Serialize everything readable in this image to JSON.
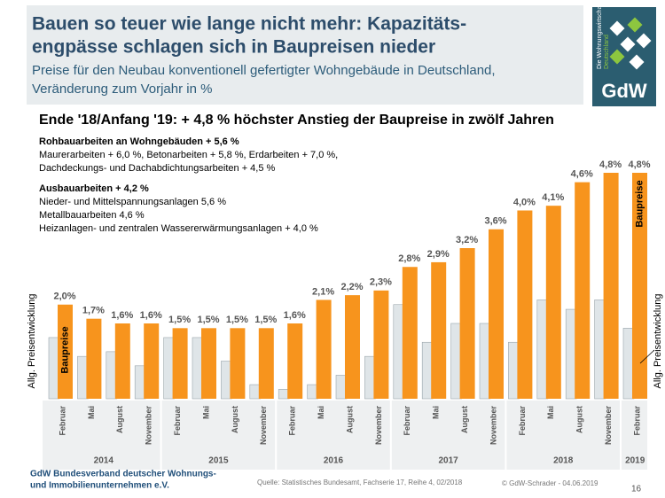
{
  "header": {
    "title_lines": [
      "Bauen so teuer wie lange nicht mehr: Kapazitäts-",
      "engpässe schlagen sich in Baupreisen nieder"
    ],
    "subtitle_lines": [
      "Preise für den Neubau konventionell gefertigter Wohngebäude in Deutschland,",
      "Veränderung zum Vorjahr in %"
    ]
  },
  "logo": {
    "tagline_lines": [
      "Die Wohnungswirtschaft",
      "Deutschland"
    ],
    "name": "GdW"
  },
  "headline": "Ende '18/Anfang '19: + 4,8 % höchster Anstieg der Baupreise in zwölf Jahren",
  "notes": [
    {
      "heading": "Rohbauarbeiten an Wohngebäuden + 5,6 %",
      "lines": [
        "Maurerarbeiten + 6,0 %, Betonarbeiten + 5,8 %, Erdarbeiten + 7,0 %,",
        "Dachdeckungs- und Dachabdichtungsarbeiten + 4,5 %"
      ]
    },
    {
      "heading": "Ausbauarbeiten + 4,2 %",
      "lines": [
        "Nieder- und Mittelspannungsanlagen 5,6 %",
        "Metallbauarbeiten 4,6 %",
        "Heizanlagen- und zentralen Wassererwärmungsanlagen + 4,0 %"
      ]
    }
  ],
  "chart_data": {
    "type": "bar",
    "year_groups": [
      {
        "year": "2014",
        "months": [
          "Februar",
          "Mai",
          "August",
          "November"
        ]
      },
      {
        "year": "2015",
        "months": [
          "Februar",
          "Mai",
          "August",
          "November"
        ]
      },
      {
        "year": "2016",
        "months": [
          "Februar",
          "Mai",
          "August",
          "November"
        ]
      },
      {
        "year": "2017",
        "months": [
          "Februar",
          "Mai",
          "August",
          "November"
        ]
      },
      {
        "year": "2018",
        "months": [
          "Februar",
          "Mai",
          "August",
          "November"
        ]
      },
      {
        "year": "2019",
        "months": [
          "Februar"
        ]
      }
    ],
    "series": [
      {
        "name": "Allg. Preisentwicklung",
        "color": "#dfe5e8",
        "values": [
          1.3,
          0.9,
          1.0,
          0.7,
          1.3,
          1.3,
          0.8,
          0.3,
          0.2,
          0.3,
          0.5,
          0.9,
          2.0,
          1.2,
          1.6,
          1.6,
          1.2,
          2.1,
          1.9,
          2.1,
          1.5
        ]
      },
      {
        "name": "Baupreise",
        "color": "#f7941d",
        "values": [
          2.0,
          1.7,
          1.6,
          1.6,
          1.5,
          1.5,
          1.5,
          1.5,
          1.6,
          2.1,
          2.2,
          2.3,
          2.8,
          2.9,
          3.2,
          3.6,
          4.0,
          4.1,
          4.6,
          4.8,
          4.8
        ],
        "value_labels": [
          "2,0%",
          "1,7%",
          "1,6%",
          "1,6%",
          "1,5%",
          "1,5%",
          "1,5%",
          "1,5%",
          "1,6%",
          "2,1%",
          "2,2%",
          "2,3%",
          "2,8%",
          "2,9%",
          "3,2%",
          "3,6%",
          "4,0%",
          "4,1%",
          "4,6%",
          "4,8%",
          "4,8%"
        ]
      }
    ]
  },
  "footer": {
    "org_lines": [
      "GdW Bundesverband deutscher Wohnungs-",
      "und Immobilienunternehmen e.V."
    ],
    "source": "Quelle: Statistisches Bundesamt, Fachserie 17, Reihe 4, 02/2018",
    "copyright": "© GdW-Schrader - 04.06.2019",
    "page": "16"
  }
}
